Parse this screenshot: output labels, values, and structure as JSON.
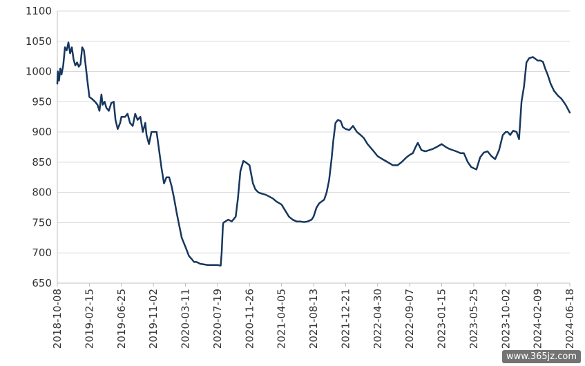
{
  "chart_data": {
    "type": "line",
    "title": "",
    "xlabel": "",
    "ylabel": "",
    "ylim": [
      650,
      1100
    ],
    "y_ticks": [
      650,
      700,
      750,
      800,
      850,
      900,
      950,
      1000,
      1050,
      1100
    ],
    "x_range": [
      "2018-10-08",
      "2024-06-18"
    ],
    "x_tick_labels": [
      "2018-10-08",
      "2019-02-15",
      "2019-06-25",
      "2019-11-02",
      "2020-03-11",
      "2020-07-19",
      "2020-11-26",
      "2021-04-05",
      "2021-08-13",
      "2021-12-21",
      "2022-04-30",
      "2022-09-07",
      "2023-01-15",
      "2023-05-25",
      "2023-10-02",
      "2024-02-09",
      "2024-06-18"
    ],
    "grid": true,
    "legend": "none",
    "line_color": "#17375e",
    "series": [
      {
        "x": [
          "2018-10-08",
          "2018-10-10",
          "2018-10-15",
          "2018-10-20",
          "2018-10-25",
          "2018-11-01",
          "2018-11-08",
          "2018-11-15",
          "2018-11-22",
          "2018-11-29",
          "2018-12-06",
          "2018-12-13",
          "2018-12-20",
          "2018-12-27",
          "2019-01-03",
          "2019-01-10",
          "2019-01-17",
          "2019-01-24",
          "2019-01-31",
          "2019-02-07",
          "2019-02-15",
          "2019-02-25",
          "2019-03-10",
          "2019-03-20",
          "2019-03-28",
          "2019-04-05",
          "2019-04-10",
          "2019-04-18",
          "2019-04-25",
          "2019-05-05",
          "2019-05-15",
          "2019-05-25",
          "2019-06-01",
          "2019-06-10",
          "2019-06-20",
          "2019-06-25",
          "2019-07-10",
          "2019-07-20",
          "2019-07-30",
          "2019-08-10",
          "2019-08-20",
          "2019-08-30",
          "2019-09-10",
          "2019-09-20",
          "2019-09-30",
          "2019-10-05",
          "2019-10-15",
          "2019-10-25",
          "2019-11-02",
          "2019-11-15",
          "2019-11-25",
          "2019-12-05",
          "2019-12-15",
          "2019-12-25",
          "2020-01-05",
          "2020-01-15",
          "2020-01-25",
          "2020-02-05",
          "2020-02-15",
          "2020-02-25",
          "2020-03-11",
          "2020-03-25",
          "2020-04-05",
          "2020-04-15",
          "2020-04-25",
          "2020-05-10",
          "2020-05-25",
          "2020-06-10",
          "2020-06-25",
          "2020-07-10",
          "2020-07-19",
          "2020-08-01",
          "2020-08-05",
          "2020-08-10",
          "2020-08-12",
          "2020-08-20",
          "2020-09-01",
          "2020-09-15",
          "2020-10-01",
          "2020-10-10",
          "2020-10-20",
          "2020-11-01",
          "2020-11-10",
          "2020-11-26",
          "2020-12-10",
          "2020-12-20",
          "2021-01-01",
          "2021-01-15",
          "2021-02-01",
          "2021-02-15",
          "2021-03-01",
          "2021-03-15",
          "2021-04-05",
          "2021-04-20",
          "2021-05-05",
          "2021-05-20",
          "2021-06-05",
          "2021-06-20",
          "2021-07-05",
          "2021-07-20",
          "2021-08-05",
          "2021-08-13",
          "2021-08-25",
          "2021-09-05",
          "2021-09-15",
          "2021-09-25",
          "2021-10-05",
          "2021-10-15",
          "2021-10-25",
          "2021-11-01",
          "2021-11-10",
          "2021-11-20",
          "2021-12-01",
          "2021-12-10",
          "2021-12-21",
          "2022-01-05",
          "2022-01-20",
          "2022-02-05",
          "2022-02-20",
          "2022-03-05",
          "2022-03-20",
          "2022-04-10",
          "2022-04-30",
          "2022-05-20",
          "2022-06-10",
          "2022-07-01",
          "2022-07-20",
          "2022-08-05",
          "2022-08-25",
          "2022-09-07",
          "2022-09-20",
          "2022-10-01",
          "2022-10-10",
          "2022-10-25",
          "2022-11-10",
          "2022-11-25",
          "2022-12-10",
          "2022-12-25",
          "2023-01-15",
          "2023-02-01",
          "2023-02-15",
          "2023-03-01",
          "2023-03-15",
          "2023-04-01",
          "2023-04-15",
          "2023-05-01",
          "2023-05-15",
          "2023-05-25",
          "2023-06-05",
          "2023-06-20",
          "2023-07-05",
          "2023-07-20",
          "2023-08-05",
          "2023-08-20",
          "2023-09-05",
          "2023-09-20",
          "2023-10-02",
          "2023-10-10",
          "2023-10-20",
          "2023-11-01",
          "2023-11-15",
          "2023-11-25",
          "2023-12-05",
          "2023-12-15",
          "2023-12-25",
          "2024-01-05",
          "2024-01-20",
          "2024-02-09",
          "2024-02-20",
          "2024-03-01",
          "2024-03-10",
          "2024-03-20",
          "2024-04-01",
          "2024-04-15",
          "2024-05-01",
          "2024-05-15",
          "2024-06-01",
          "2024-06-18"
        ],
        "y": [
          980,
          1000,
          985,
          1005,
          995,
          1010,
          1040,
          1035,
          1048,
          1030,
          1040,
          1020,
          1010,
          1015,
          1008,
          1012,
          1040,
          1035,
          1010,
          985,
          958,
          955,
          950,
          945,
          935,
          962,
          945,
          950,
          940,
          935,
          948,
          950,
          920,
          905,
          915,
          925,
          925,
          930,
          915,
          910,
          930,
          920,
          925,
          900,
          915,
          895,
          880,
          900,
          900,
          900,
          870,
          840,
          815,
          825,
          825,
          810,
          790,
          765,
          745,
          725,
          710,
          695,
          690,
          685,
          685,
          682,
          681,
          680,
          680,
          680,
          680,
          679,
          700,
          745,
          750,
          752,
          755,
          752,
          760,
          790,
          835,
          852,
          850,
          845,
          815,
          805,
          800,
          798,
          796,
          793,
          790,
          785,
          780,
          770,
          760,
          755,
          752,
          752,
          751,
          752,
          755,
          760,
          775,
          782,
          785,
          788,
          800,
          820,
          855,
          885,
          915,
          920,
          918,
          908,
          905,
          903,
          910,
          900,
          895,
          890,
          880,
          870,
          860,
          855,
          850,
          845,
          845,
          850,
          858,
          862,
          865,
          875,
          882,
          870,
          868,
          870,
          872,
          875,
          880,
          875,
          872,
          870,
          868,
          865,
          865,
          850,
          842,
          840,
          838,
          858,
          866,
          868,
          860,
          855,
          870,
          895,
          900,
          900,
          895,
          902,
          900,
          888,
          950,
          975,
          1015,
          1022,
          1024,
          1018,
          1018,
          1016,
          1005,
          995,
          980,
          968,
          960,
          955,
          945,
          932
        ]
      }
    ],
    "watermark": "www.365jz.com"
  }
}
